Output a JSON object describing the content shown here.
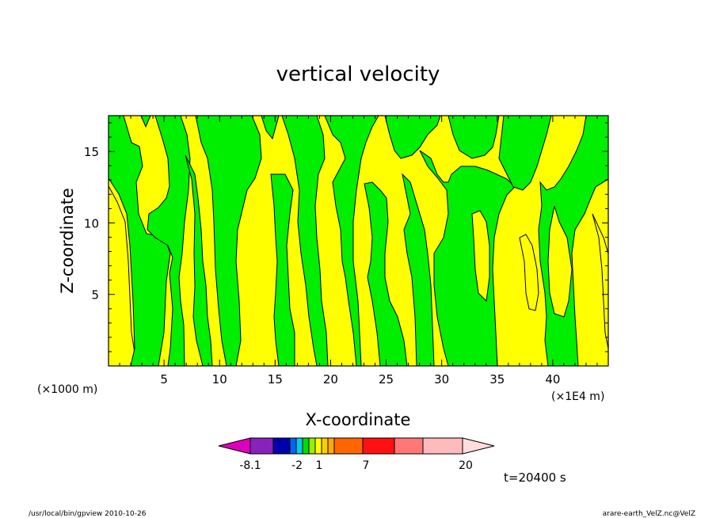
{
  "chart_data": {
    "type": "heatmap",
    "title": "vertical velocity",
    "xlabel": "X-coordinate",
    "ylabel": "Z-coordinate",
    "x_unit_left": "(×1000 m)",
    "x_unit_right": "(×1E4 m)",
    "xlim": [
      0,
      45
    ],
    "ylim": [
      0,
      17.5
    ],
    "xticks": [
      5,
      10,
      15,
      20,
      25,
      30,
      35,
      40
    ],
    "yticks": [
      5,
      10,
      15
    ],
    "colors": {
      "positive_fill": "#ffff00",
      "negative_fill": "#00ee00",
      "contour": "#000000"
    },
    "colorbar": {
      "labels": [
        "-8.1",
        "-2",
        "1",
        "7",
        "20"
      ],
      "label_values": [
        -8.1,
        -2,
        1,
        7,
        20
      ],
      "colors": [
        "#dd00bb",
        "#8822bb",
        "#0000aa",
        "#0066ee",
        "#00ccee",
        "#00dd00",
        "#99ee00",
        "#ffff00",
        "#ffcc00",
        "#ffaa00",
        "#ff6600",
        "#ff1111",
        "#ff7777",
        "#ffbbbb",
        "#ffdddd"
      ]
    },
    "time_label": "t=20400 s"
  },
  "footer": {
    "left": "/usr/local/bin/gpview  2010-10-26",
    "right": "arare-earth_VelZ.nc@VelZ"
  }
}
